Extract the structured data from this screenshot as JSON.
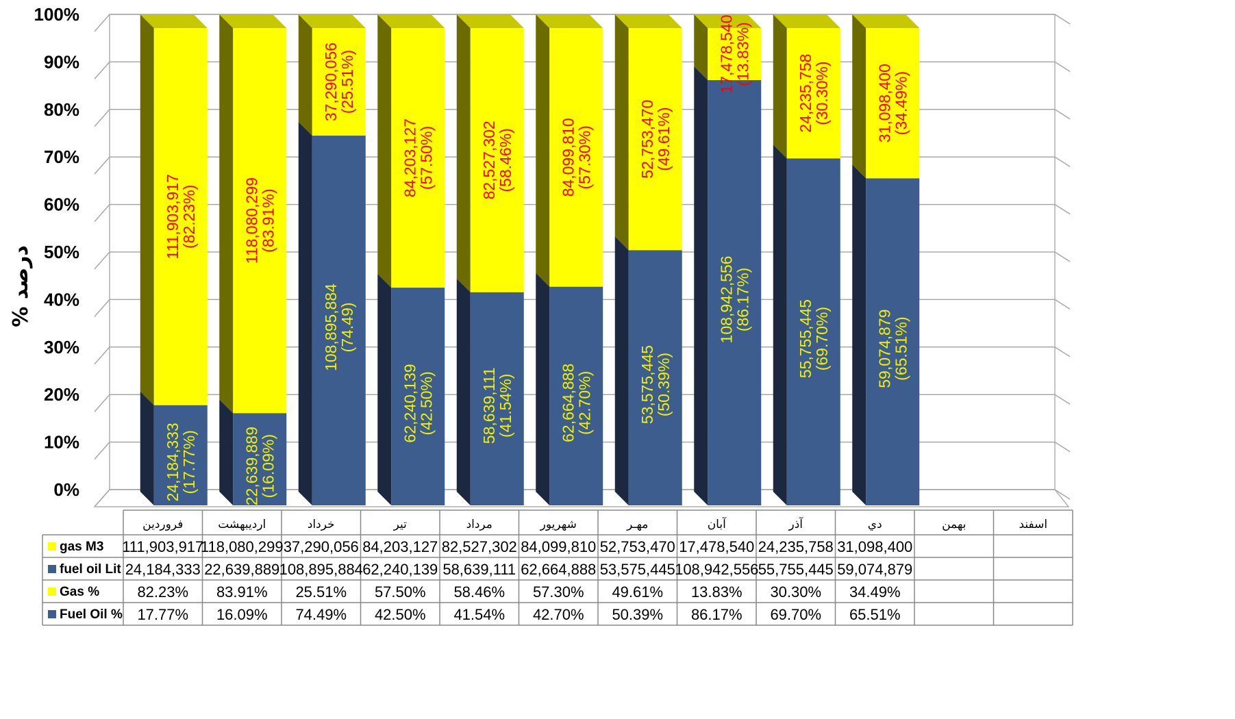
{
  "chart_data": {
    "type": "bar",
    "stacked": true,
    "normalized": true,
    "three_d": true,
    "title": "",
    "xlabel": "",
    "ylabel": "% درصد",
    "ylim": [
      0,
      100
    ],
    "yticks": [
      "0%",
      "10%",
      "20%",
      "30%",
      "40%",
      "50%",
      "60%",
      "70%",
      "80%",
      "90%",
      "100%"
    ],
    "grid": true,
    "categories": [
      "فروردین",
      "اردیبهشت",
      "خرداد",
      "تیر",
      "مرداد",
      "شهریور",
      "مهـر",
      "آبان",
      "آذر",
      "دي",
      "بهمن",
      "اسفند"
    ],
    "series": [
      {
        "name": "Fuel Oil %",
        "color": "#3d5d8f",
        "label_color": "#f2f200",
        "values": [
          17.77,
          16.09,
          74.49,
          42.5,
          41.54,
          42.7,
          50.39,
          86.17,
          69.7,
          65.51,
          null,
          null
        ],
        "bar_labels": [
          "24,184,333",
          "22,639,889",
          "108,895,884",
          "62,240,139",
          "58,639,111",
          "62,664,888",
          "53,575,445",
          "108,942,556",
          "55,755,445",
          "59,074,879",
          "",
          ""
        ],
        "bar_percent_labels": [
          "(17.77%)",
          "(16.09%)",
          "(74.49)",
          "(42.50%)",
          "(41.54%)",
          "(42.70%)",
          "(50.39%)",
          "(86.17%)",
          "(69.70%)",
          "(65.51%)",
          "",
          ""
        ]
      },
      {
        "name": "Gas %",
        "color": "#ffff00",
        "label_color": "#ff0000",
        "values": [
          82.23,
          83.91,
          25.51,
          57.5,
          58.46,
          57.3,
          49.61,
          13.83,
          30.3,
          34.49,
          null,
          null
        ],
        "bar_labels": [
          "111,903,917",
          "118,080,299",
          "37,290,056",
          "84,203,127",
          "82,527,302",
          "84,099,810",
          "52,753,470",
          "17,478,540",
          "24,235,758",
          "31,098,400",
          "",
          ""
        ],
        "bar_percent_labels": [
          "(82.23%)",
          "(83.91%)",
          "(25.51%)",
          "(57.50%)",
          "(58.46%)",
          "(57.30%)",
          "(49.61%)",
          "(13.83%)",
          "(30.30%)",
          "(34.49%)",
          "",
          ""
        ]
      }
    ],
    "data_table": {
      "rows": [
        {
          "label": "gas M3",
          "key_color": "#ffff00",
          "cells": [
            "111,903,917",
            "118,080,299",
            "37,290,056",
            "84,203,127",
            "82,527,302",
            "84,099,810",
            "52,753,470",
            "17,478,540",
            "24,235,758",
            "31,098,400",
            "",
            ""
          ]
        },
        {
          "label": "fuel oil Lit",
          "key_color": "#3d5d8f",
          "cells": [
            "24,184,333",
            "22,639,889",
            "108,895,884",
            "62,240,139",
            "58,639,111",
            "62,664,888",
            "53,575,445",
            "108,942,556",
            "55,755,445",
            "59,074,879",
            "",
            ""
          ]
        },
        {
          "label": "Gas %",
          "key_color": "#ffff00",
          "cells": [
            "82.23%",
            "83.91%",
            "25.51%",
            "57.50%",
            "58.46%",
            "57.30%",
            "49.61%",
            "13.83%",
            "30.30%",
            "34.49%",
            "",
            ""
          ]
        },
        {
          "label": "Fuel Oil %",
          "key_color": "#3d5d8f",
          "cells": [
            "17.77%",
            "16.09%",
            "74.49%",
            "42.50%",
            "41.54%",
            "42.70%",
            "50.39%",
            "86.17%",
            "69.70%",
            "65.51%",
            "",
            ""
          ]
        }
      ]
    }
  }
}
